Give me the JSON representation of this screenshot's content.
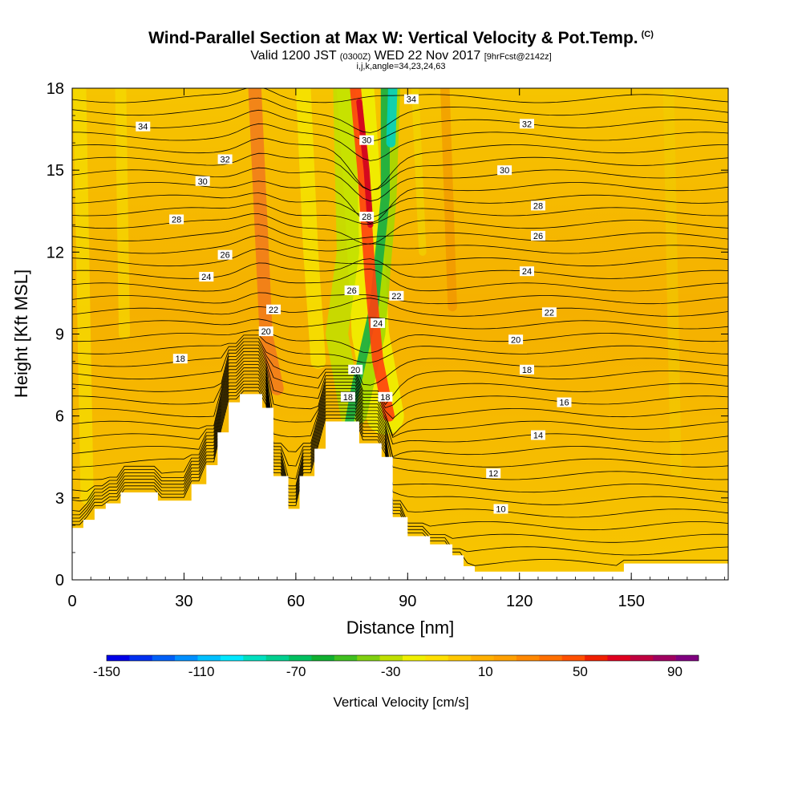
{
  "header": {
    "title": "Wind-Parallel Section at Max W: Vertical Velocity & Pot.Temp.",
    "copyright": "(C)",
    "subtitle_main_1": "Valid 1200 JST",
    "subtitle_small_1": "(0300Z)",
    "subtitle_main_2": "WED 22 Nov 2017",
    "subtitle_small_2": "[9hrFcst@2142z]",
    "indices": "i,j,k,angle=34,23,24,63"
  },
  "colors": {
    "background_field": "#f5b400",
    "terrain": "#ffffff",
    "contour_line": "#000000",
    "updraft_core": "#e02010",
    "downdraft_core": "#20c040"
  },
  "chart_data": {
    "type": "heatmap",
    "xlabel": "Distance [nm]",
    "ylabel": "Height [Kft MSL]",
    "xlim": [
      0,
      176
    ],
    "ylim": [
      0,
      18
    ],
    "x_ticks": [
      0,
      30,
      60,
      90,
      120,
      150
    ],
    "y_ticks": [
      0,
      3,
      6,
      9,
      12,
      15,
      18
    ],
    "colorbar": {
      "label": "Vertical Velocity [cm/s]",
      "tick_labels": [
        -150,
        -110,
        -70,
        -30,
        10,
        50,
        90
      ],
      "levels": [
        -150,
        -140,
        -130,
        -120,
        -110,
        -100,
        -90,
        -80,
        -70,
        -60,
        -50,
        -40,
        -30,
        -20,
        -10,
        0,
        10,
        20,
        30,
        40,
        50,
        60,
        70,
        80,
        90,
        100
      ],
      "colors": [
        "#0000e8",
        "#0030f0",
        "#0060f8",
        "#0090ff",
        "#00c0ff",
        "#00e8ff",
        "#00e0c0",
        "#00d090",
        "#00c060",
        "#10b030",
        "#40c020",
        "#80d010",
        "#c0e000",
        "#f0f000",
        "#ffe000",
        "#ffc800",
        "#ffb000",
        "#ffa000",
        "#ff8800",
        "#ff7000",
        "#ff5000",
        "#f02000",
        "#e00020",
        "#c00040",
        "#a00060",
        "#800080"
      ]
    },
    "theta_contour_labels": [
      {
        "text": "34",
        "x": 19,
        "y": 16.6
      },
      {
        "text": "32",
        "x": 41,
        "y": 15.4
      },
      {
        "text": "30",
        "x": 35,
        "y": 14.6
      },
      {
        "text": "28",
        "x": 28,
        "y": 13.2
      },
      {
        "text": "26",
        "x": 41,
        "y": 11.9
      },
      {
        "text": "24",
        "x": 36,
        "y": 11.1
      },
      {
        "text": "22",
        "x": 54,
        "y": 9.9
      },
      {
        "text": "20",
        "x": 52,
        "y": 9.1
      },
      {
        "text": "18",
        "x": 29,
        "y": 8.1
      },
      {
        "text": "34",
        "x": 91,
        "y": 17.6
      },
      {
        "text": "30",
        "x": 79,
        "y": 16.1
      },
      {
        "text": "28",
        "x": 79,
        "y": 13.3
      },
      {
        "text": "26",
        "x": 75,
        "y": 10.6
      },
      {
        "text": "24",
        "x": 82,
        "y": 9.4
      },
      {
        "text": "22",
        "x": 87,
        "y": 10.4
      },
      {
        "text": "20",
        "x": 76,
        "y": 7.7
      },
      {
        "text": "18",
        "x": 74,
        "y": 6.7
      },
      {
        "text": "18",
        "x": 84,
        "y": 6.7
      },
      {
        "text": "32",
        "x": 122,
        "y": 16.7
      },
      {
        "text": "30",
        "x": 116,
        "y": 15.0
      },
      {
        "text": "28",
        "x": 125,
        "y": 13.7
      },
      {
        "text": "26",
        "x": 125,
        "y": 12.6
      },
      {
        "text": "24",
        "x": 122,
        "y": 11.3
      },
      {
        "text": "22",
        "x": 128,
        "y": 9.8
      },
      {
        "text": "20",
        "x": 119,
        "y": 8.8
      },
      {
        "text": "18",
        "x": 122,
        "y": 7.7
      },
      {
        "text": "16",
        "x": 132,
        "y": 6.5
      },
      {
        "text": "14",
        "x": 125,
        "y": 5.3
      },
      {
        "text": "12",
        "x": 113,
        "y": 3.9
      },
      {
        "text": "10",
        "x": 115,
        "y": 2.6
      }
    ],
    "terrain_height_kft": [
      {
        "x": 0,
        "h": 1.9
      },
      {
        "x": 3,
        "h": 2.2
      },
      {
        "x": 6,
        "h": 2.6
      },
      {
        "x": 9,
        "h": 2.8
      },
      {
        "x": 13,
        "h": 3.2
      },
      {
        "x": 23,
        "h": 2.9
      },
      {
        "x": 32,
        "h": 3.5
      },
      {
        "x": 36,
        "h": 4.2
      },
      {
        "x": 39,
        "h": 5.4
      },
      {
        "x": 42,
        "h": 6.5
      },
      {
        "x": 45,
        "h": 6.8
      },
      {
        "x": 51,
        "h": 6.3
      },
      {
        "x": 54,
        "h": 3.8
      },
      {
        "x": 58,
        "h": 2.6
      },
      {
        "x": 61,
        "h": 3.8
      },
      {
        "x": 65,
        "h": 4.8
      },
      {
        "x": 68,
        "h": 5.8
      },
      {
        "x": 77,
        "h": 5.0
      },
      {
        "x": 83,
        "h": 4.5
      },
      {
        "x": 86,
        "h": 2.3
      },
      {
        "x": 90,
        "h": 1.6
      },
      {
        "x": 96,
        "h": 1.3
      },
      {
        "x": 102,
        "h": 0.9
      },
      {
        "x": 105,
        "h": 0.5
      },
      {
        "x": 108,
        "h": 0.3
      },
      {
        "x": 140,
        "h": 0.3
      },
      {
        "x": 148,
        "h": 0.6
      },
      {
        "x": 176,
        "h": 0.6
      }
    ]
  }
}
